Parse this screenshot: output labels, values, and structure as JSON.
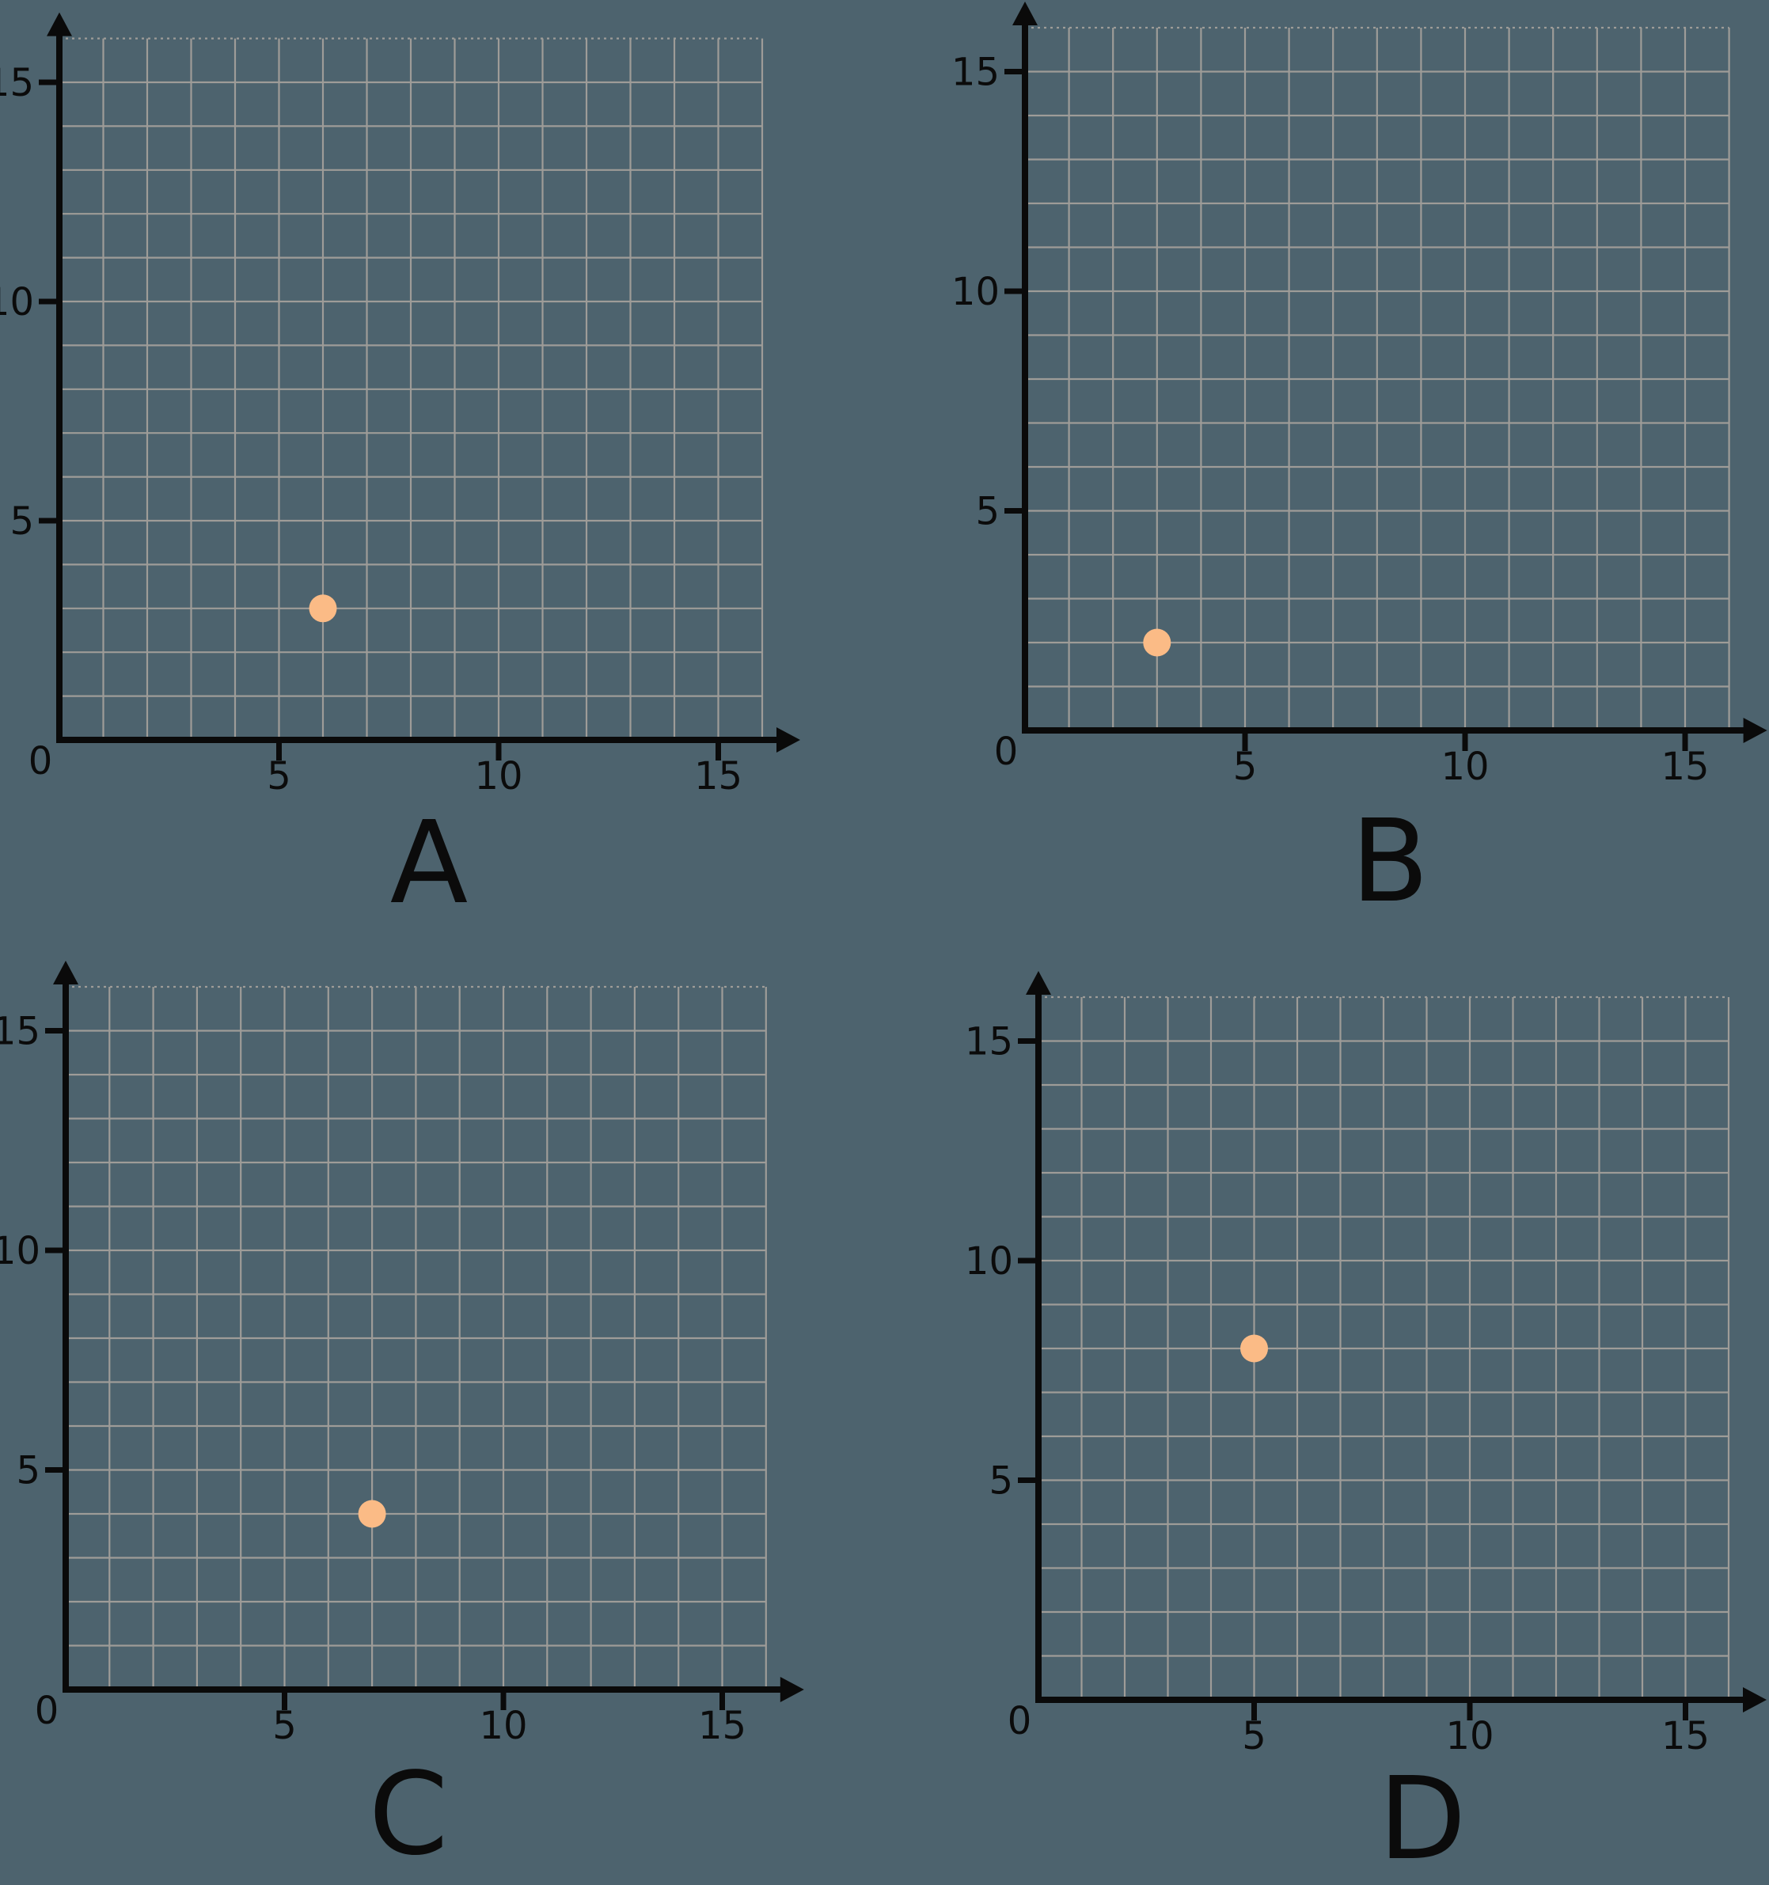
{
  "canvas": {
    "background_color": "#4d636e"
  },
  "styles": {
    "grid_color": "#9e9c98",
    "axis_color": "#0a0a0a",
    "text_color": "#0b0b0b",
    "point_color": "#fbbb86",
    "point_radius": 17.5
  },
  "chart_data": [
    {
      "type": "scatter",
      "label": "A",
      "points": [
        {
          "x": 6,
          "y": 3
        }
      ],
      "xlim": [
        0,
        16
      ],
      "ylim": [
        0,
        16
      ],
      "x_ticks": [
        5,
        10,
        15
      ],
      "y_ticks": [
        5,
        10,
        15
      ],
      "origin_label": "0",
      "grid": true,
      "legend": "none",
      "title": ""
    },
    {
      "type": "scatter",
      "label": "B",
      "points": [
        {
          "x": 3,
          "y": 2
        }
      ],
      "xlim": [
        0,
        16
      ],
      "ylim": [
        0,
        16
      ],
      "x_ticks": [
        5,
        10,
        15
      ],
      "y_ticks": [
        5,
        10,
        15
      ],
      "origin_label": "0",
      "grid": true,
      "legend": "none",
      "title": ""
    },
    {
      "type": "scatter",
      "label": "C",
      "points": [
        {
          "x": 7,
          "y": 4
        }
      ],
      "xlim": [
        0,
        16
      ],
      "ylim": [
        0,
        16
      ],
      "x_ticks": [
        5,
        10,
        15
      ],
      "y_ticks": [
        5,
        10,
        15
      ],
      "origin_label": "0",
      "grid": true,
      "legend": "none",
      "title": ""
    },
    {
      "type": "scatter",
      "label": "D",
      "points": [
        {
          "x": 5,
          "y": 8
        }
      ],
      "xlim": [
        0,
        16
      ],
      "ylim": [
        0,
        16
      ],
      "x_ticks": [
        5,
        10,
        15
      ],
      "y_ticks": [
        5,
        10,
        15
      ],
      "origin_label": "0",
      "grid": true,
      "legend": "none",
      "title": ""
    }
  ]
}
